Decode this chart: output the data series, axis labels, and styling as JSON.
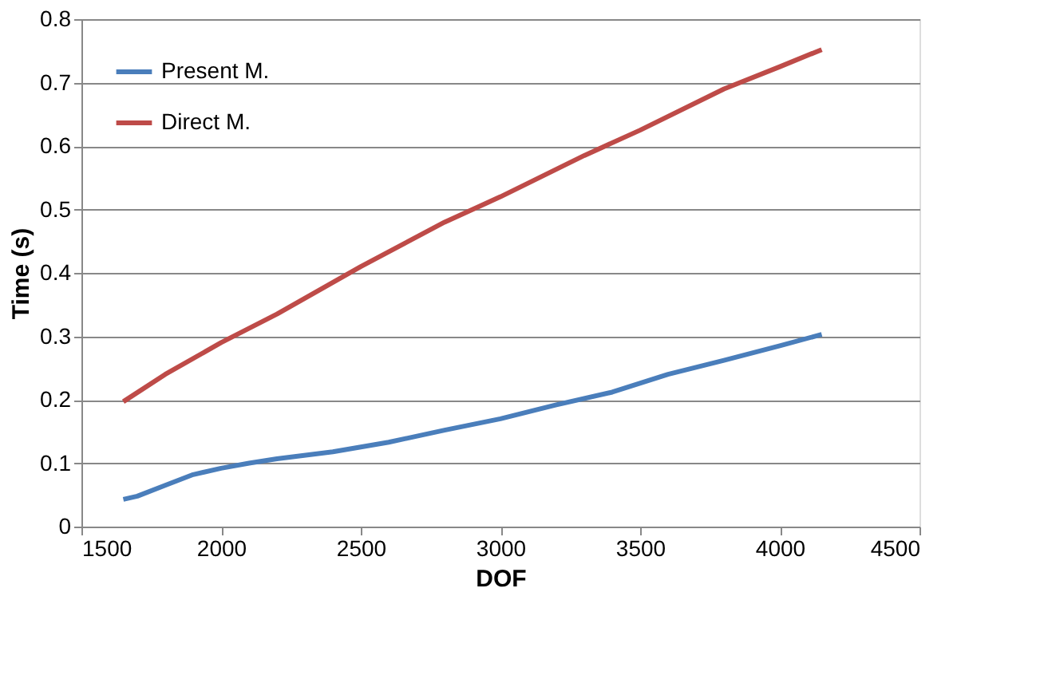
{
  "chart_data": {
    "type": "line",
    "xlabel": "DOF",
    "ylabel": "Time (s)",
    "xlim": [
      1500,
      4500
    ],
    "xticks": [
      1500,
      2000,
      2500,
      3000,
      3500,
      4000,
      4500
    ],
    "ylim": [
      0,
      0.8
    ],
    "yticks": [
      0,
      0.1,
      0.2,
      0.3,
      0.4,
      0.5,
      0.6,
      0.7,
      0.8
    ],
    "grid": "y",
    "legend": "top left",
    "marker": "none",
    "line_style": "solid",
    "series": [
      {
        "name": "Present M.",
        "color": "#4a7ebb",
        "x": [
          1650,
          1700,
          1800,
          1900,
          2000,
          2100,
          2200,
          2400,
          2600,
          2800,
          3000,
          3200,
          3400,
          3600,
          3800,
          4000,
          4150
        ],
        "values": [
          0.043,
          0.048,
          0.065,
          0.082,
          0.092,
          0.1,
          0.107,
          0.118,
          0.133,
          0.152,
          0.17,
          0.192,
          0.212,
          0.24,
          0.262,
          0.285,
          0.303
        ]
      },
      {
        "name": "Direct M.",
        "color": "#be4b48",
        "x": [
          1650,
          1800,
          2000,
          2200,
          2500,
          2800,
          3000,
          3300,
          3500,
          3800,
          4000,
          4150
        ],
        "values": [
          0.197,
          0.24,
          0.29,
          0.335,
          0.41,
          0.48,
          0.52,
          0.585,
          0.625,
          0.69,
          0.725,
          0.752
        ]
      }
    ]
  }
}
